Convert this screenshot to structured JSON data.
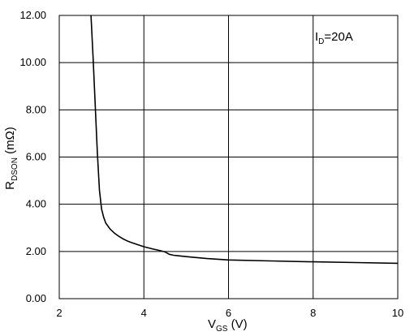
{
  "chart_data": {
    "type": "line",
    "title": "",
    "xlabel": {
      "main": "V",
      "sub": "GS",
      "unit": " (V)"
    },
    "ylabel": {
      "main": "R",
      "sub": "DSON",
      "unit": " (mΩ)"
    },
    "xlim": [
      2,
      10
    ],
    "ylim": [
      0,
      12
    ],
    "grid": true,
    "x_ticks": [
      2,
      4,
      6,
      8,
      10
    ],
    "x_tick_labels": [
      "2",
      "4",
      "6",
      "8",
      "10"
    ],
    "y_ticks": [
      0,
      2,
      4,
      6,
      8,
      10,
      12
    ],
    "y_tick_labels": [
      "0.00",
      "2.00",
      "4.00",
      "6.00",
      "8.00",
      "10.00",
      "12.00"
    ],
    "annotation": {
      "main": "I",
      "sub": "D",
      "rest": "=20A"
    },
    "series": [
      {
        "x": [
          2.75,
          2.8,
          2.85,
          2.9,
          2.95,
          3.0,
          3.05,
          3.1,
          3.2,
          3.3,
          3.4,
          3.5,
          3.6,
          3.7,
          3.8,
          3.9,
          4.0,
          4.2,
          4.4,
          4.5,
          4.6,
          4.7,
          4.8,
          5.0,
          5.5,
          6.0,
          7.0,
          8.0,
          9.0,
          10.0
        ],
        "y": [
          12.0,
          10.2,
          8.2,
          6.2,
          4.6,
          3.8,
          3.45,
          3.2,
          2.95,
          2.78,
          2.65,
          2.54,
          2.45,
          2.38,
          2.32,
          2.26,
          2.2,
          2.11,
          2.03,
          1.98,
          1.88,
          1.84,
          1.82,
          1.78,
          1.7,
          1.64,
          1.6,
          1.56,
          1.53,
          1.5
        ]
      }
    ]
  }
}
